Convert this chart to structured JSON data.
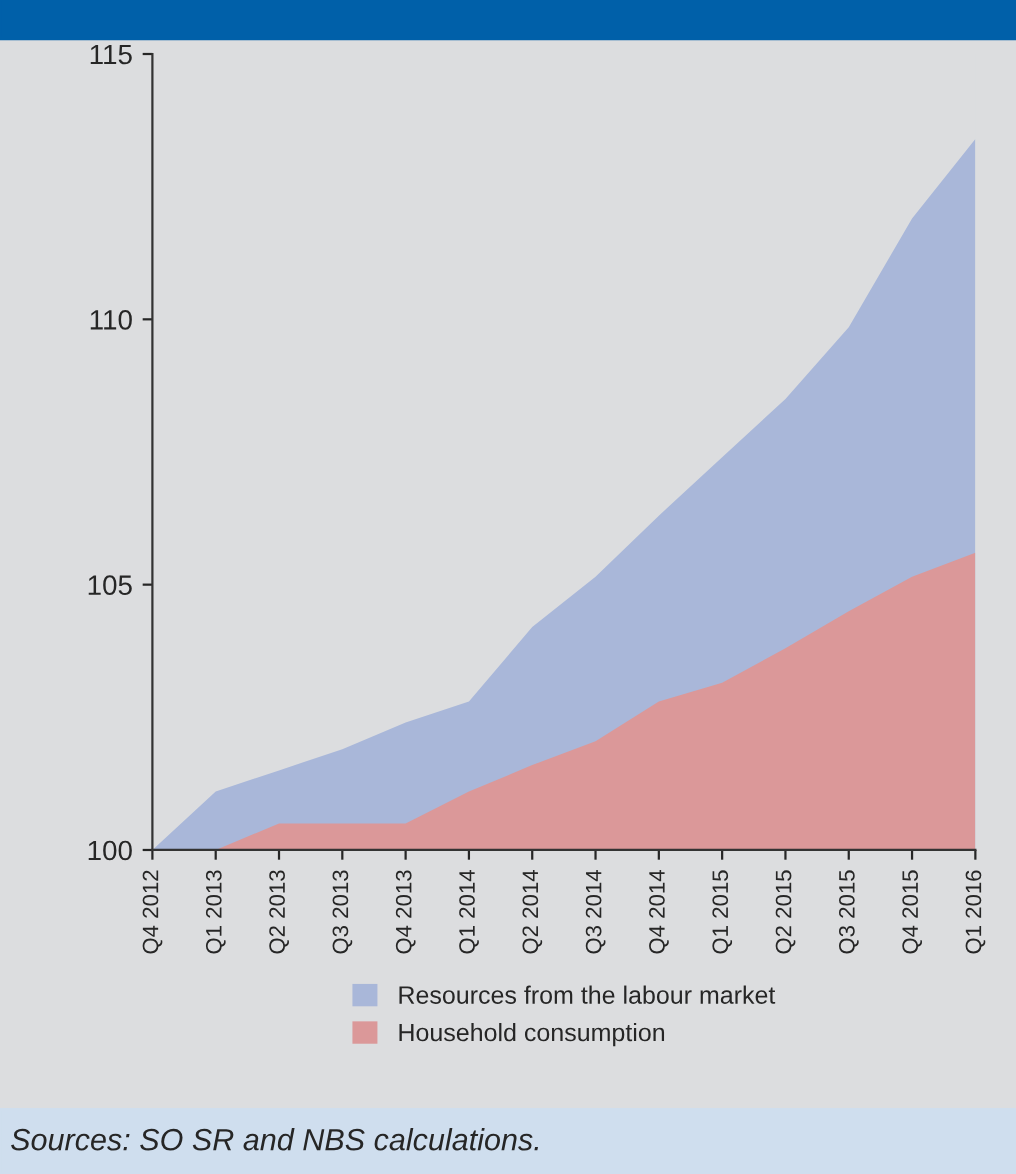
{
  "chart_data": {
    "type": "area",
    "categories": [
      "Q4 2012",
      "Q1 2013",
      "Q2 2013",
      "Q3 2013",
      "Q4 2013",
      "Q1 2014",
      "Q2 2014",
      "Q3 2014",
      "Q4 2014",
      "Q1 2015",
      "Q2 2015",
      "Q3 2015",
      "Q4 2015",
      "Q1 2016"
    ],
    "series": [
      {
        "name": "Resources from the labour market",
        "color": "#a9b7d9",
        "values": [
          100,
          101.1,
          101.5,
          101.9,
          102.4,
          102.8,
          104.2,
          105.15,
          106.3,
          107.4,
          108.5,
          109.85,
          111.9,
          113.4
        ]
      },
      {
        "name": "Household consumption",
        "color": "#db9899",
        "values": [
          100,
          100,
          100.5,
          100.5,
          100.5,
          101.1,
          101.6,
          102.05,
          102.8,
          103.15,
          103.8,
          104.5,
          105.15,
          105.6
        ]
      }
    ],
    "ylim": [
      100,
      115
    ],
    "yticks": [
      100,
      105,
      110,
      115
    ],
    "grid": false,
    "legend": "bottom",
    "annotations": [
      "Sources: SO SR and NBS calculations."
    ]
  }
}
